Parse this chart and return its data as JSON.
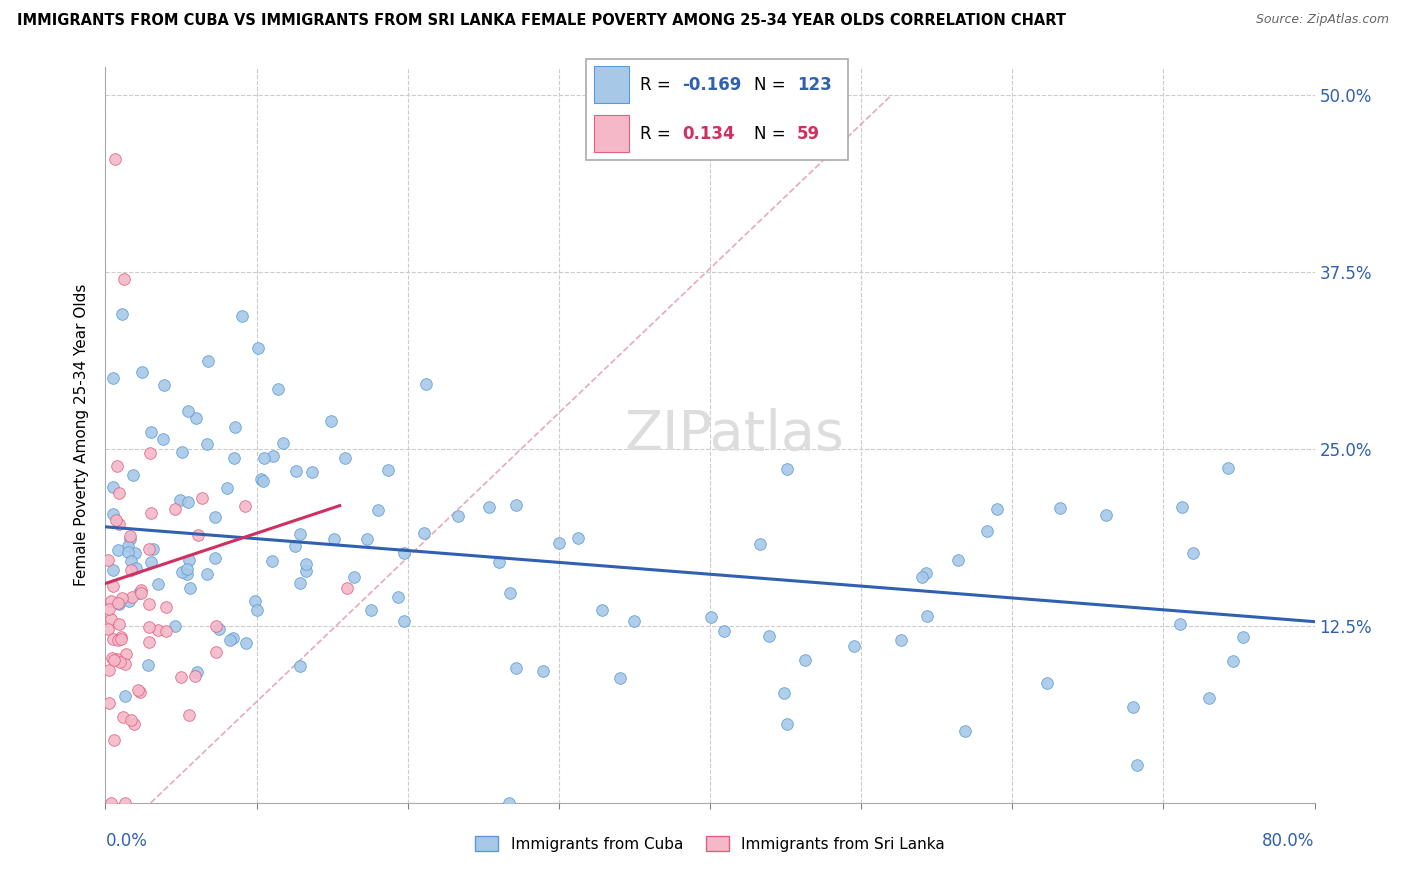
{
  "title": "IMMIGRANTS FROM CUBA VS IMMIGRANTS FROM SRI LANKA FEMALE POVERTY AMONG 25-34 YEAR OLDS CORRELATION CHART",
  "source": "Source: ZipAtlas.com",
  "ylabel": "Female Poverty Among 25-34 Year Olds",
  "xlim": [
    0.0,
    0.8
  ],
  "ylim": [
    0.0,
    0.52
  ],
  "ytick_values": [
    0.0,
    0.125,
    0.25,
    0.375,
    0.5
  ],
  "ytick_labels": [
    "",
    "12.5%",
    "25.0%",
    "37.5%",
    "50.0%"
  ],
  "legend_cuba": "Immigrants from Cuba",
  "legend_srilanka": "Immigrants from Sri Lanka",
  "R_cuba": "-0.169",
  "N_cuba": "123",
  "R_srilanka": "0.134",
  "N_srilanka": "59",
  "color_cuba_fill": "#a8c8e8",
  "color_cuba_edge": "#5b9bd5",
  "color_srilanka_fill": "#f4b8c8",
  "color_srilanka_edge": "#e06080",
  "color_cuba_line": "#3060b0",
  "color_srilanka_line": "#d03060",
  "color_diag_line": "#e8a0b0",
  "watermark": "ZIPatlas",
  "scatter_seed": 12345,
  "cuba_line_x0": 0.0,
  "cuba_line_x1": 0.8,
  "cuba_line_y0": 0.195,
  "cuba_line_y1": 0.128,
  "srilanka_line_x0": 0.0,
  "srilanka_line_x1": 0.155,
  "srilanka_line_y0": 0.155,
  "srilanka_line_y1": 0.21,
  "diag_line_x0": 0.03,
  "diag_line_x1": 0.52,
  "diag_line_y0": 0.0,
  "diag_line_y1": 0.5
}
